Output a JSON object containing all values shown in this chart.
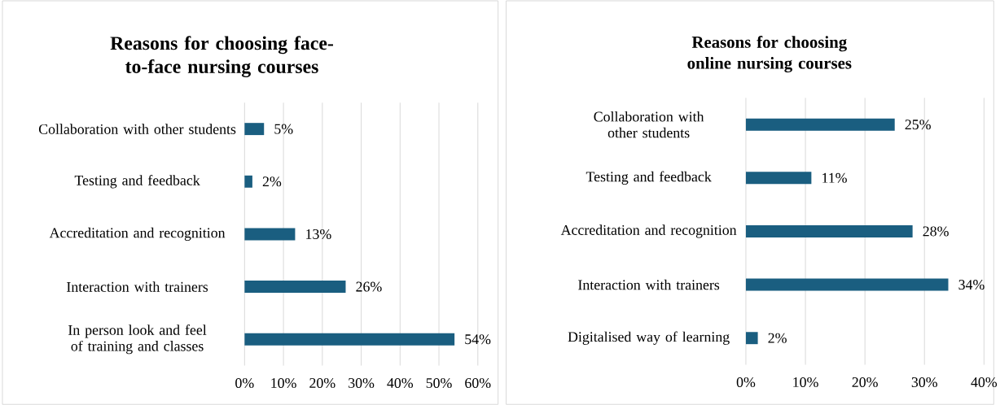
{
  "chart_data": [
    {
      "type": "bar",
      "orientation": "horizontal",
      "title": "Reasons for choosing face-to-face nursing courses",
      "categories": [
        "Collaboration with other students",
        "Testing and feedback",
        "Accreditation and recognition",
        "Interaction with trainers",
        "In person look and feel of training and classes"
      ],
      "values": [
        5,
        2,
        13,
        26,
        54
      ],
      "value_labels": [
        "5%",
        "2%",
        "13%",
        "26%",
        "54%"
      ],
      "color": "#1a5e80",
      "xlim": [
        0,
        60
      ],
      "xticks": [
        {
          "value": 0,
          "label": "0%"
        },
        {
          "value": 10,
          "label": "10%"
        },
        {
          "value": 20,
          "label": "20%"
        },
        {
          "value": 30,
          "label": "30%"
        },
        {
          "value": 40,
          "label": "40%"
        },
        {
          "value": 50,
          "label": "50%"
        },
        {
          "value": 60,
          "label": "60%"
        }
      ],
      "grid": "x"
    },
    {
      "type": "bar",
      "orientation": "horizontal",
      "title": "Reasons for choosing online nursing courses",
      "categories": [
        "Collaboration with other students",
        "Testing and feedback",
        "Accreditation and recognition",
        "Interaction with trainers",
        "Digitalised way of learning"
      ],
      "values": [
        25,
        11,
        28,
        34,
        2
      ],
      "value_labels": [
        "25%",
        "11%",
        "28%",
        "34%",
        "2%"
      ],
      "color": "#1a5e80",
      "xlim": [
        0,
        40
      ],
      "xticks": [
        {
          "value": 0,
          "label": "0%"
        },
        {
          "value": 10,
          "label": "10%"
        },
        {
          "value": 20,
          "label": "20%"
        },
        {
          "value": 30,
          "label": "30%"
        },
        {
          "value": 40,
          "label": "40%"
        }
      ],
      "grid": "x"
    }
  ]
}
